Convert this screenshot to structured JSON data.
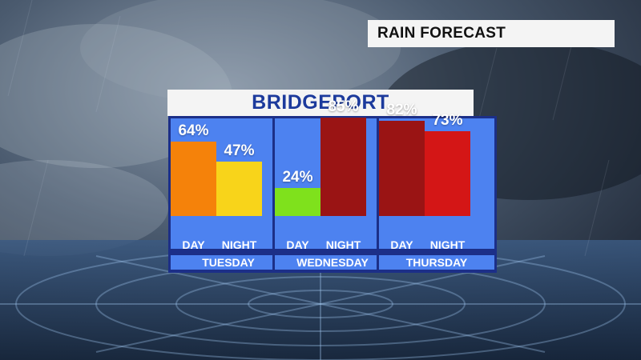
{
  "header": {
    "tag": "RAIN FORECAST"
  },
  "chart_data": {
    "type": "bar",
    "title": "BRIDGEPORT",
    "ylim": [
      0,
      100
    ],
    "groups": [
      {
        "day": "TUESDAY",
        "bars": [
          {
            "label": "DAY",
            "value": 64,
            "text": "64%",
            "color": "#f5820a"
          },
          {
            "label": "NIGHT",
            "value": 47,
            "text": "47%",
            "color": "#f8d41a"
          }
        ]
      },
      {
        "day": "WEDNESDAY",
        "bars": [
          {
            "label": "DAY",
            "value": 24,
            "text": "24%",
            "color": "#7fe11c"
          },
          {
            "label": "NIGHT",
            "value": 85,
            "text": "85%",
            "color": "#9a1414"
          }
        ]
      },
      {
        "day": "THURSDAY",
        "bars": [
          {
            "label": "DAY",
            "value": 82,
            "text": "82%",
            "color": "#9a1414"
          },
          {
            "label": "NIGHT",
            "value": 73,
            "text": "73%",
            "color": "#d41616"
          }
        ]
      }
    ]
  }
}
